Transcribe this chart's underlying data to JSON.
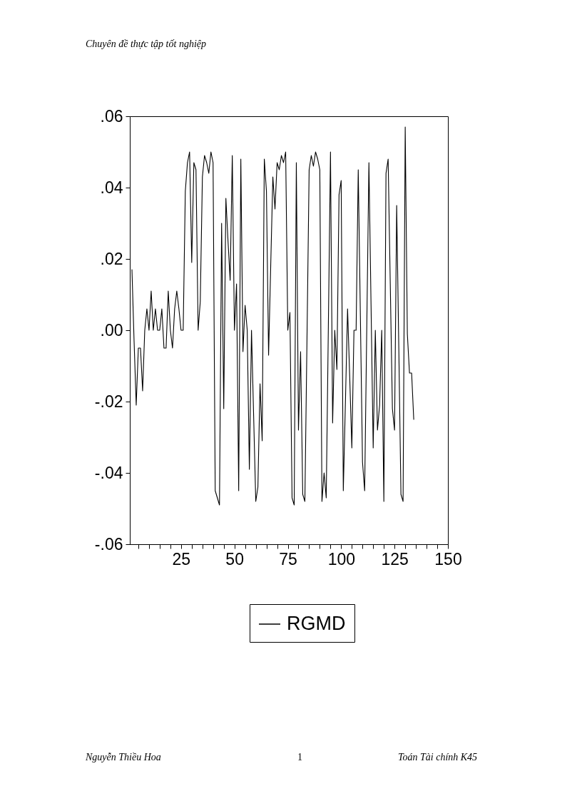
{
  "chart_data": {
    "type": "line",
    "x": [
      2,
      3,
      4,
      5,
      6,
      7,
      8,
      9,
      10,
      11,
      12,
      13,
      14,
      15,
      16,
      17,
      18,
      19,
      20,
      21,
      22,
      23,
      24,
      25,
      26,
      27,
      28,
      29,
      30,
      31,
      32,
      33,
      34,
      35,
      36,
      37,
      38,
      39,
      40,
      41,
      42,
      43,
      44,
      45,
      46,
      47,
      48,
      49,
      50,
      51,
      52,
      53,
      54,
      55,
      56,
      57,
      58,
      59,
      60,
      61,
      62,
      63,
      64,
      65,
      66,
      67,
      68,
      69,
      70,
      71,
      72,
      73,
      74,
      75,
      76,
      77,
      78,
      79,
      80,
      81,
      82,
      83,
      84,
      85,
      86,
      87,
      88,
      89,
      90,
      91,
      92,
      93,
      94,
      95,
      96,
      97,
      98,
      99,
      100,
      101,
      102,
      103,
      104,
      105,
      106,
      107,
      108,
      109,
      110,
      111,
      112,
      113,
      114,
      115,
      116,
      117,
      118,
      119,
      120,
      121,
      122,
      123,
      124,
      125,
      126,
      127,
      128,
      129,
      130,
      131,
      132,
      133,
      134
    ],
    "series": [
      {
        "name": "RGMD",
        "color": "#000000",
        "values": [
          0.017,
          -0.003,
          -0.021,
          -0.005,
          -0.005,
          -0.017,
          0,
          0.006,
          0,
          0.011,
          0,
          0.006,
          0,
          0,
          0.006,
          -0.005,
          -0.005,
          0.011,
          0,
          -0.005,
          0.006,
          0.011,
          0.006,
          0,
          0,
          0.039,
          0.047,
          0.05,
          0.019,
          0.047,
          0.045,
          0,
          0.008,
          0.043,
          0.049,
          0.047,
          0.044,
          0.05,
          0.047,
          -0.045,
          -0.047,
          -0.049,
          0.03,
          -0.022,
          0.037,
          0.025,
          0.014,
          0.049,
          0,
          0.013,
          -0.045,
          0.048,
          -0.006,
          0.007,
          0,
          -0.039,
          0,
          -0.024,
          -0.048,
          -0.044,
          -0.015,
          -0.031,
          0.048,
          0.039,
          -0.007,
          0.018,
          0.043,
          0.034,
          0.047,
          0.045,
          0.049,
          0.047,
          0.05,
          0,
          0.005,
          -0.047,
          -0.049,
          0.047,
          -0.028,
          -0.006,
          -0.046,
          -0.048,
          -0.002,
          0.045,
          0.049,
          0.046,
          0.05,
          0.048,
          0.045,
          -0.048,
          -0.04,
          -0.047,
          0.001,
          0.05,
          -0.026,
          0,
          -0.011,
          0.038,
          0.042,
          -0.045,
          -0.02,
          0.006,
          -0.013,
          -0.033,
          0,
          0,
          0.045,
          0.004,
          -0.037,
          -0.045,
          0.001,
          0.047,
          0.007,
          -0.033,
          0,
          -0.028,
          -0.021,
          0,
          -0.048,
          0.044,
          0.048,
          0.013,
          -0.022,
          -0.028,
          0.035,
          -0.005,
          -0.046,
          -0.048,
          0.057,
          -0.001,
          -0.012,
          -0.012,
          -0.025
        ]
      }
    ],
    "xlim": [
      1,
      150
    ],
    "xticks": [
      {
        "value": 5,
        "label": null
      },
      {
        "value": 10,
        "label": null
      },
      {
        "value": 15,
        "label": null
      },
      {
        "value": 20,
        "label": null
      },
      25,
      {
        "value": 30,
        "label": null
      },
      {
        "value": 35,
        "label": null
      },
      {
        "value": 40,
        "label": null
      },
      {
        "value": 45,
        "label": null
      },
      50,
      {
        "value": 55,
        "label": null
      },
      {
        "value": 60,
        "label": null
      },
      {
        "value": 65,
        "label": null
      },
      {
        "value": 70,
        "label": null
      },
      75,
      {
        "value": 80,
        "label": null
      },
      {
        "value": 85,
        "label": null
      },
      {
        "value": 90,
        "label": null
      },
      {
        "value": 95,
        "label": null
      },
      100,
      {
        "value": 105,
        "label": null
      },
      {
        "value": 110,
        "label": null
      },
      {
        "value": 115,
        "label": null
      },
      {
        "value": 120,
        "label": null
      },
      125,
      {
        "value": 130,
        "label": null
      },
      {
        "value": 135,
        "label": null
      },
      {
        "value": 140,
        "label": null
      },
      {
        "value": 145,
        "label": null
      },
      150
    ],
    "ylim": [
      -0.06,
      0.06
    ],
    "yticks": [
      {
        "value": -0.06,
        "label": "-.06"
      },
      {
        "value": -0.04,
        "label": "-.04"
      },
      {
        "value": -0.02,
        "label": "-.02"
      },
      {
        "value": 0,
        "label": ".00"
      },
      {
        "value": 0.02,
        "label": ".02"
      },
      {
        "value": 0.04,
        "label": ".04"
      },
      {
        "value": 0.06,
        "label": ".06"
      }
    ],
    "legend": "bottom",
    "annotations": [
      "Chuyên đề thực tập tốt nghiệp",
      "Nguyễn Thiều Hoa",
      "1",
      "Toán Tài chính K45"
    ]
  }
}
